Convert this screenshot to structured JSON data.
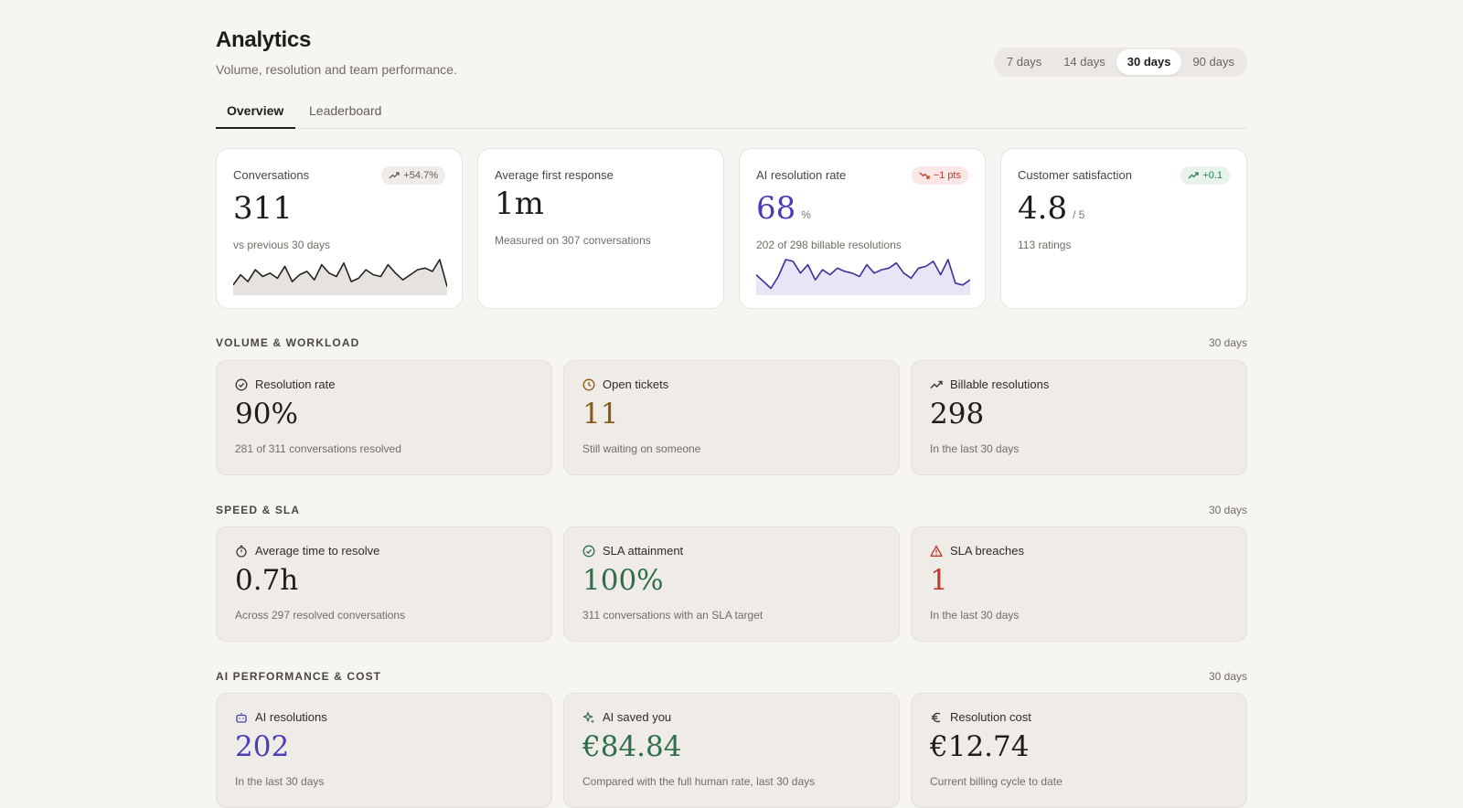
{
  "header": {
    "title": "Analytics",
    "subtitle": "Volume, resolution and team performance."
  },
  "range": {
    "options": [
      "7 days",
      "14 days",
      "30 days",
      "90 days"
    ],
    "selected": "30 days"
  },
  "tabs": {
    "items": [
      {
        "label": "Overview",
        "active": true
      },
      {
        "label": "Leaderboard",
        "active": false
      }
    ]
  },
  "kpis": [
    {
      "label": "Conversations",
      "value": "311",
      "sub": "vs previous 30 days",
      "badge": {
        "text": "+54.7%",
        "tone": "neutral",
        "icon": "trend-up-icon"
      },
      "sparkline": [
        0.25,
        0.55,
        0.35,
        0.7,
        0.5,
        0.6,
        0.45,
        0.8,
        0.35,
        0.55,
        0.65,
        0.4,
        0.85,
        0.6,
        0.5,
        0.9,
        0.35,
        0.45,
        0.7,
        0.55,
        0.5,
        0.85,
        0.6,
        0.4,
        0.55,
        0.7,
        0.75,
        0.65,
        1.0,
        0.2
      ],
      "spark_color": "#26231f",
      "spark_fill": "#e6e3de"
    },
    {
      "label": "Average first response",
      "value": "1m",
      "sub": "Measured on 307 conversations"
    },
    {
      "label": "AI resolution rate",
      "value": "68",
      "suffix": "%",
      "sub": "202 of 298 billable resolutions",
      "badge": {
        "text": "−1 pts",
        "tone": "bad",
        "icon": "trend-down-icon"
      },
      "sparkline": [
        0.55,
        0.35,
        0.15,
        0.5,
        1.0,
        0.95,
        0.6,
        0.85,
        0.4,
        0.7,
        0.55,
        0.75,
        0.65,
        0.6,
        0.5,
        0.85,
        0.6,
        0.7,
        0.75,
        0.9,
        0.6,
        0.45,
        0.75,
        0.8,
        0.95,
        0.55,
        1.0,
        0.3,
        0.25,
        0.4
      ],
      "spark_color": "#3b2e9e",
      "spark_fill": "#e8e6f6"
    },
    {
      "label": "Customer satisfaction",
      "value": "4.8",
      "suffix": "/ 5",
      "sub": "113 ratings",
      "badge": {
        "text": "+0.1",
        "tone": "good",
        "icon": "trend-up-icon"
      }
    }
  ],
  "sections": [
    {
      "title": "VOLUME & WORKLOAD",
      "range": "30 days",
      "stats": [
        {
          "icon": "check-circle-icon",
          "label": "Resolution rate",
          "value": "90%",
          "sub": "281 of 311 conversations resolved",
          "tone": ""
        },
        {
          "icon": "clock-icon",
          "label": "Open tickets",
          "value": "11",
          "sub": "Still waiting on someone",
          "tone": "amber"
        },
        {
          "icon": "trend-up-icon",
          "label": "Billable resolutions",
          "value": "298",
          "sub": "In the last 30 days",
          "tone": ""
        }
      ]
    },
    {
      "title": "SPEED & SLA",
      "range": "30 days",
      "stats": [
        {
          "icon": "stopwatch-icon",
          "label": "Average time to resolve",
          "value": "0.7h",
          "sub": "Across 297 resolved conversations",
          "tone": ""
        },
        {
          "icon": "check-circle-icon",
          "label": "SLA attainment",
          "value": "100%",
          "sub": "311 conversations with an SLA target",
          "tone": "green"
        },
        {
          "icon": "warning-triangle-icon",
          "label": "SLA breaches",
          "value": "1",
          "sub": "In the last 30 days",
          "tone": "red"
        }
      ]
    },
    {
      "title": "AI PERFORMANCE & COST",
      "range": "30 days",
      "stats": [
        {
          "icon": "robot-icon",
          "label": "AI resolutions",
          "value": "202",
          "sub": "In the last 30 days",
          "tone": "purple"
        },
        {
          "icon": "sparkles-icon",
          "label": "AI saved you",
          "value": "€84.84",
          "sub": "Compared with the full human rate, last 30 days",
          "tone": "green"
        },
        {
          "icon": "euro-icon",
          "label": "Resolution cost",
          "value": "€12.74",
          "sub": "Current billing cycle to date",
          "tone": ""
        }
      ]
    }
  ]
}
